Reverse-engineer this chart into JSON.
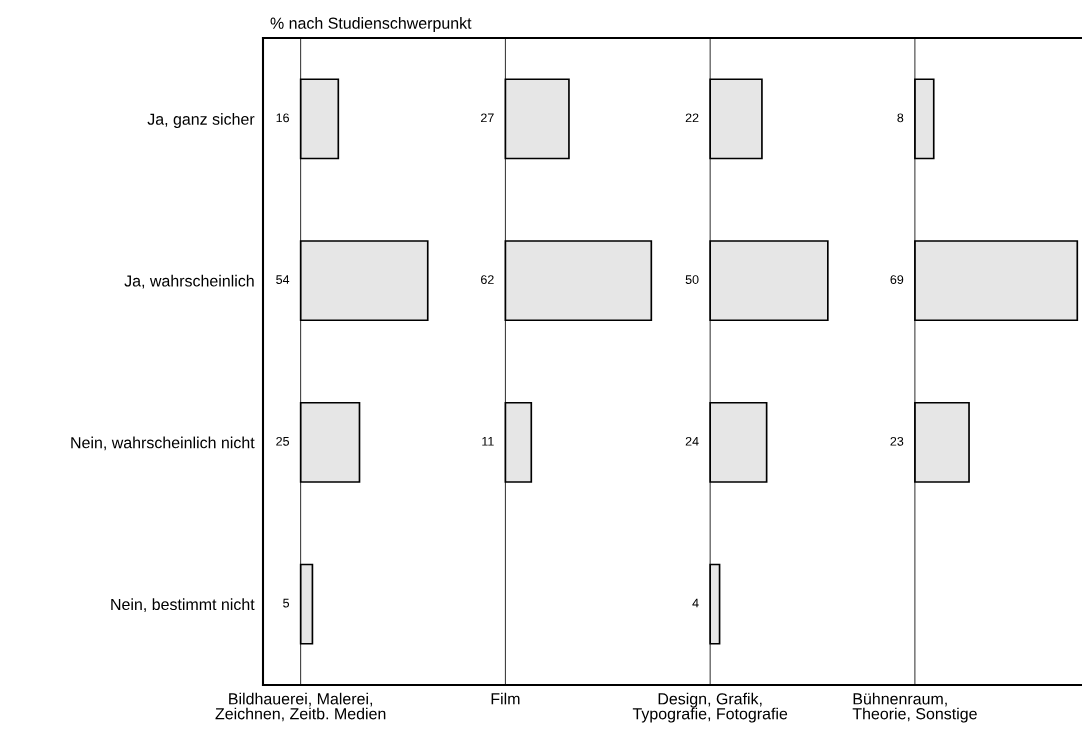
{
  "chart_data": [
    {
      "type": "bar",
      "orientation": "horizontal",
      "title": "% nach Studienschwerpunkt",
      "xlabel": "Bildhauerei, Malerei,\nZeichnen, Zeitb. Medien",
      "categories": [
        "Ja, ganz sicher",
        "Ja, wahrscheinlich",
        "Nein, wahrscheinlich nicht",
        "Nein, bestimmt nicht"
      ],
      "values": [
        16,
        54,
        25,
        5
      ],
      "color": "#e6e6e6",
      "xlim": [
        -16,
        71
      ],
      "data_labels": true,
      "tick_labels": "y"
    },
    {
      "type": "bar",
      "orientation": "horizontal",
      "xlabel": "Film",
      "categories": [
        null,
        null,
        null,
        null
      ],
      "values": [
        27,
        62,
        11,
        null
      ],
      "color": "#e6e6e6",
      "xlim": [
        -16,
        71
      ],
      "data_labels": true,
      "tick_labels": false
    },
    {
      "type": "bar",
      "orientation": "horizontal",
      "xlabel": "Design, Grafik,\nTypografie, Fotografie",
      "categories": [
        null,
        null,
        null,
        null
      ],
      "values": [
        22,
        50,
        24,
        4
      ],
      "color": "#e6e6e6",
      "xlim": [
        -16,
        71
      ],
      "data_labels": true,
      "tick_labels": false
    },
    {
      "type": "bar",
      "orientation": "horizontal",
      "xlabel": "Bühnenraum,\nTheorie, Sonstige",
      "categories": [
        null,
        null,
        null,
        null
      ],
      "values": [
        8,
        69,
        23,
        null
      ],
      "color": "#e6e6e6",
      "xlim": [
        -16,
        71
      ],
      "data_labels": true,
      "tick_labels": false
    }
  ]
}
